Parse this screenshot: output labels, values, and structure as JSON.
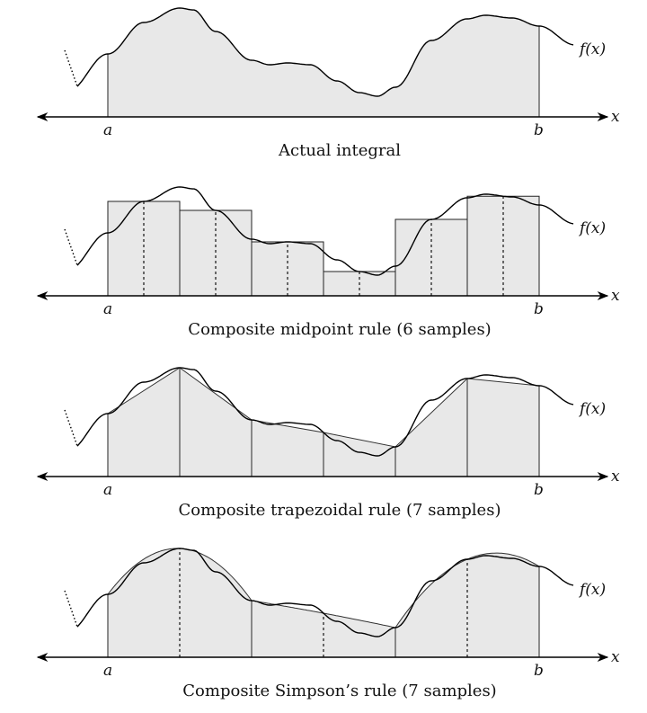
{
  "function_label": "f(x)",
  "axis_label": "x",
  "left_bound": "a",
  "right_bound": "b",
  "panels": [
    {
      "caption": "Actual integral"
    },
    {
      "caption": "Composite midpoint rule (6 samples)"
    },
    {
      "caption": "Composite trapezoidal rule (7 samples)"
    },
    {
      "caption": "Composite Simpson’s rule (7 samples)"
    }
  ]
}
